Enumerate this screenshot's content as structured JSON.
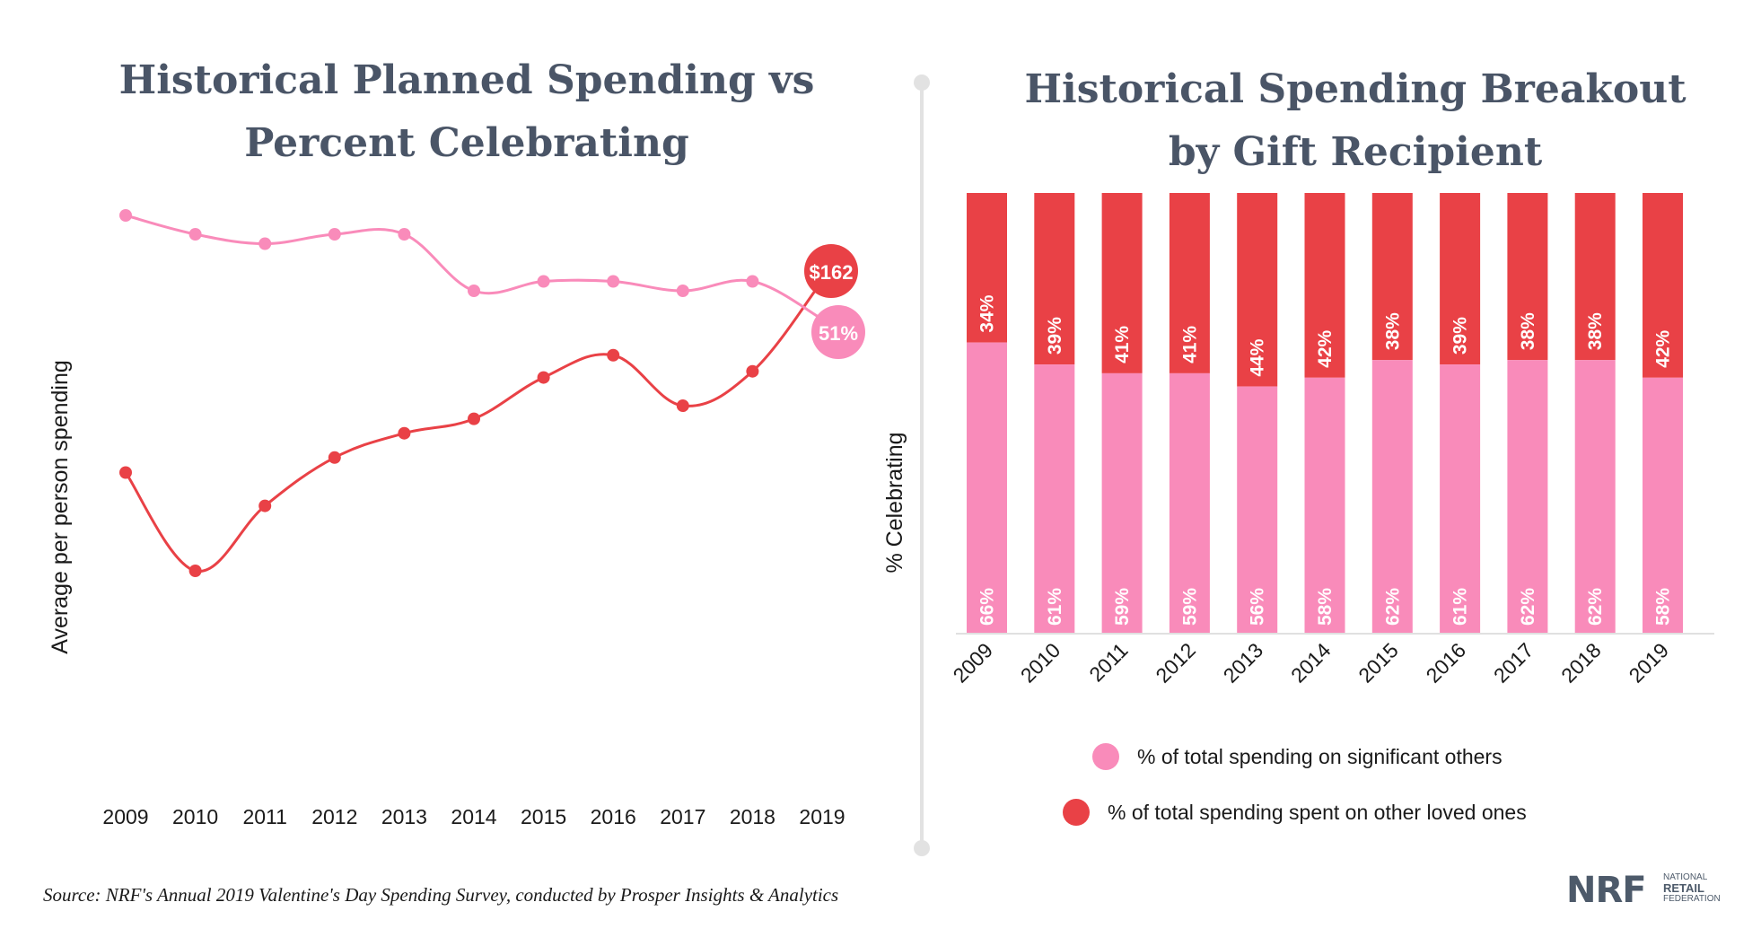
{
  "colors": {
    "pink": "#f98bba",
    "red": "#e94146",
    "title": "#4a5567",
    "axis_text": "#1a1a1a",
    "divider": "#e2e2e2"
  },
  "left_chart": {
    "title_line1": "Historical Planned Spending vs",
    "title_line2": "Percent Celebrating",
    "ylabel": "Average per person spending",
    "spending_badge": "$162",
    "celebrating_badge": "51%"
  },
  "right_chart": {
    "title_line1": "Historical Spending Breakout",
    "title_line2": "by Gift Recipient",
    "ylabel": "% Celebrating",
    "legend": [
      {
        "label": "% of total spending on significant others",
        "color": "#f98bba"
      },
      {
        "label": "% of total spending spent on other loved ones",
        "color": "#e94146"
      }
    ]
  },
  "chart_data": [
    {
      "type": "line",
      "title": "Historical Planned Spending vs Percent Celebrating",
      "xlabel": "",
      "ylabel": "Average per person spending",
      "x": [
        "2009",
        "2010",
        "2011",
        "2012",
        "2013",
        "2014",
        "2015",
        "2016",
        "2017",
        "2018",
        "2019"
      ],
      "series": [
        {
          "name": "Average per person spending ($)",
          "color": "#e94146",
          "values": [
            122.98,
            103.0,
            116.21,
            126.03,
            130.97,
            133.91,
            142.31,
            146.84,
            136.57,
            143.56,
            161.96
          ],
          "end_label": "$162"
        },
        {
          "name": "Percent celebrating (%)",
          "color": "#f98bba",
          "values": [
            62,
            60,
            59,
            60,
            60,
            54,
            55,
            55,
            54,
            55,
            51
          ],
          "end_label": "51%"
        }
      ]
    },
    {
      "type": "bar",
      "stacked": true,
      "title": "Historical Spending Breakout by Gift Recipient",
      "xlabel": "",
      "ylabel": "% Celebrating",
      "ylim": [
        0,
        100
      ],
      "categories": [
        "2009",
        "2010",
        "2011",
        "2012",
        "2013",
        "2014",
        "2015",
        "2016",
        "2017",
        "2018",
        "2019"
      ],
      "series": [
        {
          "name": "% of total spending on significant others",
          "color": "#f98bba",
          "values": [
            66,
            61,
            59,
            59,
            56,
            58,
            62,
            61,
            62,
            62,
            58
          ],
          "labels": [
            "66%",
            "61%",
            "59%",
            "59%",
            "56%",
            "58%",
            "62%",
            "61%",
            "62%",
            "62%",
            "58%"
          ]
        },
        {
          "name": "% of total spending spent on other loved ones",
          "color": "#e94146",
          "values": [
            34,
            39,
            41,
            41,
            44,
            42,
            38,
            39,
            38,
            38,
            42
          ],
          "labels": [
            "34%",
            "39%",
            "41%",
            "41%",
            "44%",
            "42%",
            "38%",
            "39%",
            "38%",
            "38%",
            "42%"
          ]
        }
      ]
    }
  ],
  "footer": {
    "source": "Source: NRF's Annual 2019 Valentine's Day Spending Survey, conducted by Prosper Insights & Analytics",
    "logo_main": "NRF",
    "logo_line1": "NATIONAL",
    "logo_line2": "RETAIL",
    "logo_line3": "FEDERATION"
  }
}
